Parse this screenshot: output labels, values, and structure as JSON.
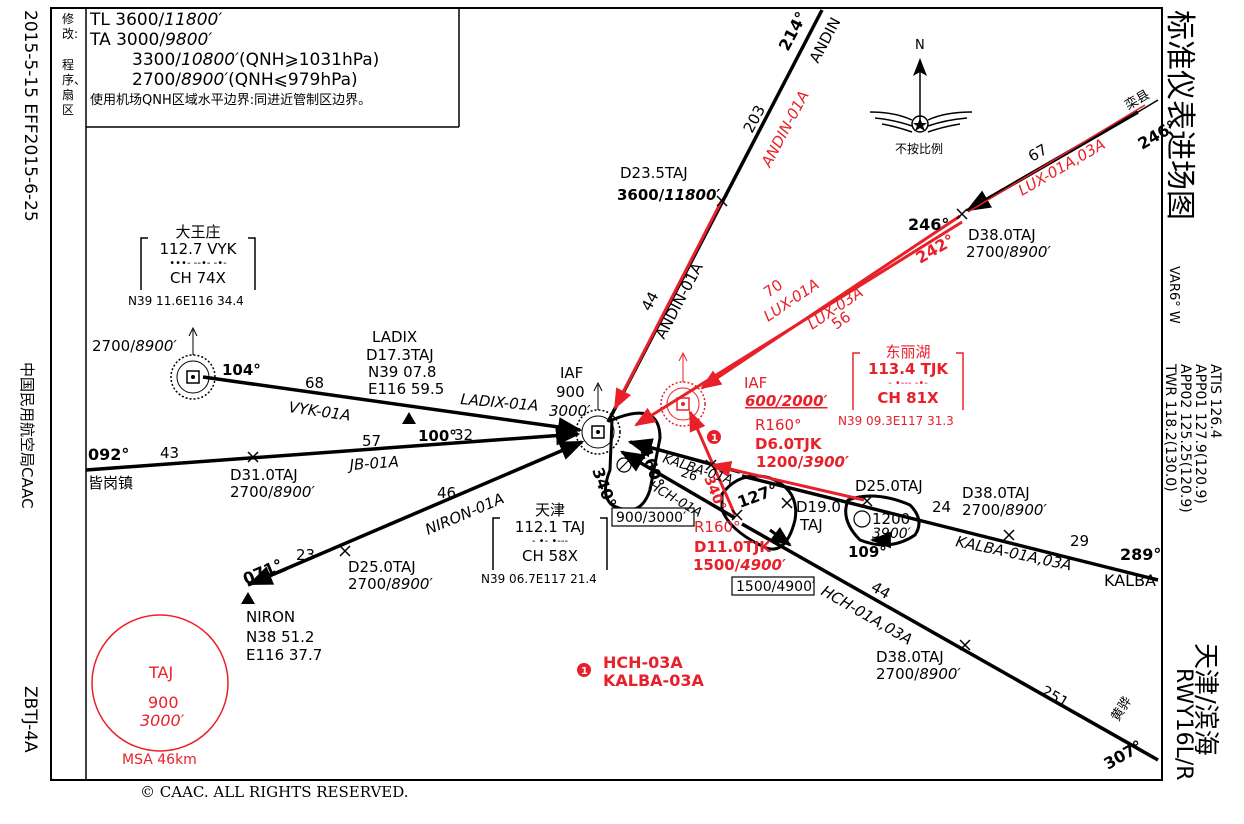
{
  "left_margin": {
    "dates": "2015-5-15 EFF2015-6-25",
    "authority": "中国民用航空局CAAC",
    "chart_id": "ZBTJ-4A"
  },
  "revision": {
    "label": "修改:",
    "items": "程序、扇区"
  },
  "header_box": {
    "tl_prefix": "TL",
    "tl_val": "3600/",
    "tl_ft": "11800′",
    "ta_prefix": "TA",
    "ta_val": "3000/",
    "ta_ft": "9800′",
    "ta2_val": "3300/",
    "ta2_ft": "10800′",
    "ta2_cond": "(QNH⩾1031hPa)",
    "ta3_val": "2700/",
    "ta3_ft": "8900′",
    "ta3_cond": "(QNH⩽979hPa)",
    "note": "使用机场QNH区域水平边界:同进近管制区边界。"
  },
  "right_margin": {
    "title": "标准仪表进场图",
    "var": "VAR6° W",
    "freqs": [
      "ATIS 126.4",
      "APP01 127.9(120.9)",
      "APP02 125.25(120.9)",
      "TWR 118.2(130.0)"
    ],
    "airport": "天津/滨海",
    "runway": "RWY16L/R"
  },
  "north": {
    "label": "N",
    "scale": "不按比例"
  },
  "copyright": "© CAAC. ALL RIGHTS RESERVED.",
  "navaids": {
    "vyk": {
      "name": "大王庄",
      "freq": "112.7 VYK",
      "morse": "•••- --•- -•-",
      "ch": "CH 74X",
      "coord": "N39 11.6E116 34.4",
      "alt": "2700/",
      "alt_ft": "8900′"
    },
    "taj": {
      "name": "天津",
      "freq": "112.1 TAJ",
      "morse": "- •- •---",
      "ch": "CH 58X",
      "coord": "N39 06.7E117 21.4"
    },
    "tjk": {
      "name": "东丽湖",
      "freq": "113.4 TJK",
      "morse": "- •--- -•-",
      "ch": "CH 81X",
      "coord": "N39 09.3E117 31.3"
    }
  },
  "fixes": {
    "ladix": {
      "name": "LADIX",
      "dist": "D17.3TAJ",
      "lat": "N39 07.8",
      "lon": "E116 59.5"
    },
    "niron": {
      "name": "NIRON",
      "lat": "N38 51.2",
      "lon": "E116 37.7",
      "course": "071°",
      "dist_leg": "23"
    },
    "andin": {
      "name": "ANDIN",
      "course": "214°"
    },
    "kalba": {
      "name": "KALBA",
      "course": "289°"
    },
    "lux": {
      "name": "栾县",
      "course": "246°"
    },
    "hch": {
      "name": "黄骅",
      "course": "307°"
    },
    "jb": {
      "name": "皆岗镇",
      "course": "092°"
    }
  },
  "iaf_taj": {
    "label": "IAF",
    "alt": "900",
    "alt_ft": "3000′",
    "hold_alt": "900/3000′",
    "in_course": "160°",
    "out_course": "340°"
  },
  "iaf_tjk": {
    "label": "IAF",
    "alt": "600/2000′"
  },
  "points": {
    "andin_d235": {
      "dist": "D23.5TAJ",
      "alt": "3600/",
      "alt_ft": "11800′"
    },
    "lux_d380": {
      "dist": "D38.0TAJ",
      "alt": "2700/",
      "alt_ft": "8900′",
      "c1": "246°",
      "c2": "242°"
    },
    "jb_d310": {
      "dist": "D31.0TAJ",
      "alt": "2700/",
      "alt_ft": "8900′"
    },
    "niron_d250": {
      "dist": "D25.0TAJ",
      "alt": "2700/",
      "alt_ft": "8900′"
    },
    "kalba_d250": {
      "dist": "D25.0TAJ",
      "hold_alt": "1200",
      "hold_alt_ft": "3900′",
      "out_course": "109°"
    },
    "kalba_d380": {
      "dist": "D38.0TAJ",
      "alt": "2700/",
      "alt_ft": "8900′"
    },
    "hch_d380": {
      "dist": "D38.0TAJ",
      "alt": "2700/",
      "alt_ft": "8900′"
    },
    "d190": {
      "dist": "D19.0",
      "nav": "TAJ",
      "course": "127°"
    },
    "tjk_d6": {
      "radial": "R160°",
      "dist": "D6.0TJK",
      "alt": "1200/",
      "alt_ft": "3900′"
    },
    "tjk_d11": {
      "radial": "R160°",
      "dist": "D11.0TJK",
      "alt": "1500/",
      "alt_ft": "4900′",
      "hold_alt": "1500/4900′"
    }
  },
  "routes": {
    "vyk": {
      "label": "VYK-01A",
      "dist": "68",
      "course": "104°"
    },
    "ladix": {
      "label": "LADIX-01A",
      "dist": "32",
      "course": "100°"
    },
    "jb": {
      "label": "JB-01A",
      "dist1": "43",
      "dist2": "57"
    },
    "niron": {
      "label": "NIRON-01A",
      "dist": "46"
    },
    "andin_black": {
      "label": "ANDIN-01A",
      "dist1": "203",
      "dist2": "44"
    },
    "andin_red": {
      "label": "ANDIN-01A"
    },
    "lux_red": {
      "label": "LUX-01A,03A",
      "dist": "67"
    },
    "lux01": {
      "label": "LUX-01A",
      "dist": "70"
    },
    "lux03": {
      "label": "LUX-03A",
      "dist": "56"
    },
    "kalba": {
      "label": "KALBA-01A,03A",
      "dist1": "29",
      "dist2": "24"
    },
    "kalba01": {
      "label": "KALBA-01A",
      "dist": "26"
    },
    "hch01": {
      "label": "HCH-01A"
    },
    "hch": {
      "label": "HCH-01A,03A",
      "dist1": "251",
      "dist2": "44"
    },
    "red_340": {
      "label": "340°"
    }
  },
  "note_red": {
    "num": "1",
    "line1": "HCH-03A",
    "line2": "KALBA-03A"
  },
  "msa": {
    "nav": "TAJ",
    "alt": "900",
    "alt_ft": "3000′",
    "label": "MSA 46km"
  },
  "colors": {
    "red": "#e8202a",
    "black": "#000000"
  }
}
